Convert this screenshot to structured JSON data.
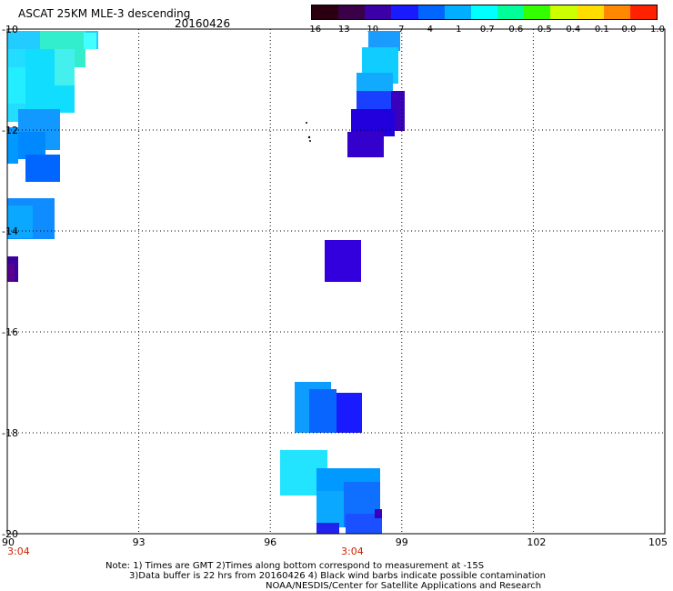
{
  "header": {
    "title": "ASCAT 25KM MLE-3 descending",
    "date": "20160426"
  },
  "colorbar": {
    "labels": [
      "-16",
      "-13",
      "-10",
      "-7",
      "-4",
      "-1",
      "-0.7",
      "-0.6",
      "-0.5",
      "-0.4",
      "-0.1",
      "0.0",
      "1.0"
    ],
    "colors": [
      "#2a0010",
      "#3a0048",
      "#3c00a8",
      "#1a1aff",
      "#0066ff",
      "#00b0ff",
      "#00ffff",
      "#00ff99",
      "#33ff00",
      "#ccff00",
      "#ffdd00",
      "#ff8800",
      "#ff2200"
    ]
  },
  "map": {
    "lat_labels": [
      "-10",
      "-12",
      "-14",
      "-16",
      "-18",
      "-20"
    ],
    "lon_labels": [
      "90",
      "93",
      "96",
      "99",
      "102",
      "105"
    ],
    "time_labels": [
      "3:04",
      "3:04"
    ],
    "lat_range": [
      -20,
      -10
    ],
    "lon_range": [
      90,
      105
    ]
  },
  "footer": {
    "note_line1": "Note: 1) Times are GMT 2)Times along bottom correspond to measurement at -15S",
    "note_line2": "3)Data buffer is 22 hrs from 20160426 4) Black wind barbs indicate possible contamination",
    "credit": "NOAA/NESDIS/Center for Satellite Applications and Research"
  }
}
